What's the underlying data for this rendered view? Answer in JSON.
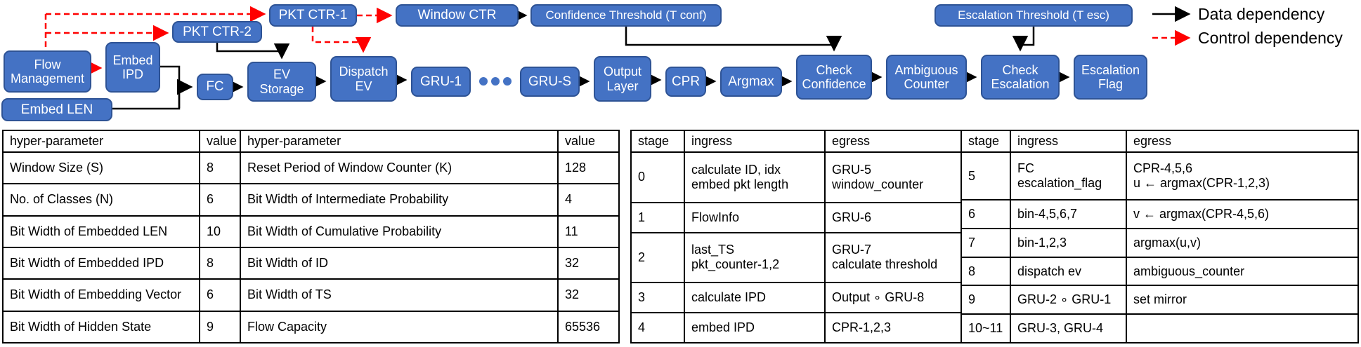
{
  "diagram": {
    "nodes": {
      "flow_management": "Flow Management",
      "embed_ipd": "Embed IPD",
      "embed_len": "Embed LEN",
      "pkt_ctr_2": "PKT CTR-2",
      "pkt_ctr_1": "PKT CTR-1",
      "window_ctr": "Window CTR",
      "confidence_threshold": "Confidence Threshold (T conf)",
      "escalation_threshold": "Escalation Threshold (T esc)",
      "fc": "FC",
      "ev_storage": "EV Storage",
      "dispatch_ev": "Dispatch EV",
      "gru_1": "GRU-1",
      "gru_s": "GRU-S",
      "output_layer": "Output Layer",
      "cpr": "CPR",
      "argmax": "Argmax",
      "check_confidence": "Check Confidence",
      "ambiguous_counter": "Ambiguous Counter",
      "check_escalation": "Check Escalation",
      "escalation_flag": "Escalation Flag"
    },
    "legend": {
      "data_dependency": "Data dependency",
      "control_dependency": "Control dependency"
    },
    "colors": {
      "node_fill": "#4472C4",
      "node_border": "#2E5395",
      "data_arrow": "#000000",
      "control_arrow": "#FF0000"
    }
  },
  "hyperparam_table": {
    "columns": [
      "hyper-parameter",
      "value",
      "hyper-parameter",
      "value"
    ],
    "rows": [
      [
        "Window Size (S)",
        "8",
        "Reset Period of Window Counter (K)",
        "128"
      ],
      [
        "No. of Classes (N)",
        "6",
        "Bit Width of Intermediate Probability",
        "4"
      ],
      [
        "Bit Width of Embedded LEN",
        "10",
        "Bit Width of Cumulative Probability",
        "11"
      ],
      [
        "Bit Width of Embedded IPD",
        "8",
        "Bit Width of ID",
        "32"
      ],
      [
        "Bit Width of Embedding Vector",
        "6",
        "Bit Width of TS",
        "32"
      ],
      [
        "Bit Width of Hidden State",
        "9",
        "Flow Capacity",
        "65536"
      ]
    ]
  },
  "stage_table": {
    "columns": [
      "stage",
      "ingress",
      "egress"
    ],
    "left_rows": [
      {
        "stage": "0",
        "ingress": [
          "calculate ID, idx",
          "embed pkt length"
        ],
        "egress": [
          "GRU-5",
          "window_counter"
        ]
      },
      {
        "stage": "1",
        "ingress": [
          "FlowInfo"
        ],
        "egress": [
          "GRU-6"
        ]
      },
      {
        "stage": "2",
        "ingress": [
          "last_TS",
          "pkt_counter-1,2"
        ],
        "egress": [
          "GRU-7",
          "calculate threshold"
        ]
      },
      {
        "stage": "3",
        "ingress": [
          "calculate IPD"
        ],
        "egress": [
          "Output ∘ GRU-8"
        ]
      },
      {
        "stage": "4",
        "ingress": [
          "embed IPD"
        ],
        "egress": [
          "CPR-1,2,3"
        ]
      }
    ],
    "right_rows": [
      {
        "stage": "5",
        "ingress": [
          "FC",
          "escalation_flag"
        ],
        "egress": [
          "CPR-4,5,6",
          "u ← argmax(CPR-1,2,3)"
        ]
      },
      {
        "stage": "6",
        "ingress": [
          "bin-4,5,6,7"
        ],
        "egress": [
          "v ← argmax(CPR-4,5,6)"
        ]
      },
      {
        "stage": "7",
        "ingress": [
          "bin-1,2,3"
        ],
        "egress": [
          "argmax(u,v)"
        ]
      },
      {
        "stage": "8",
        "ingress": [
          "dispatch ev"
        ],
        "egress": [
          "ambiguous_counter"
        ]
      },
      {
        "stage": "9",
        "ingress": [
          "GRU-2 ∘ GRU-1"
        ],
        "egress": [
          "set mirror"
        ]
      },
      {
        "stage": "10~11",
        "ingress": [
          "GRU-3, GRU-4"
        ],
        "egress": []
      }
    ]
  }
}
